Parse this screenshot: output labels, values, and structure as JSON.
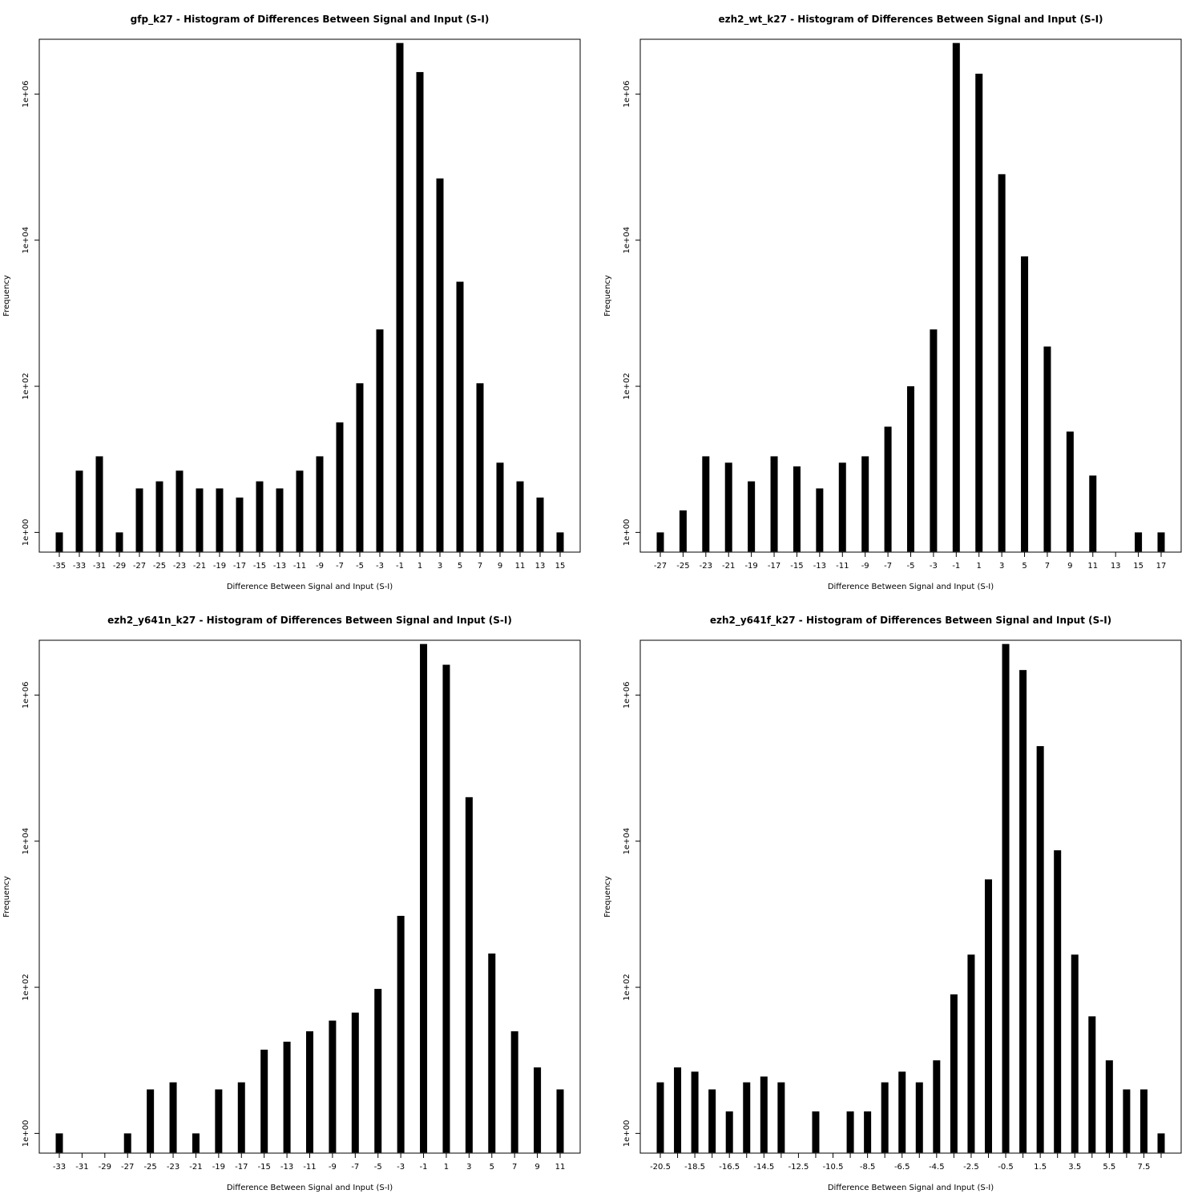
{
  "page": {
    "background": "#ffffff",
    "bar_color": "#000000"
  },
  "chart_data": [
    {
      "type": "bar",
      "title": "gfp_k27 - Histogram of Differences Between Signal and Input (S-I)",
      "xlabel": "Difference Between Signal and Input (S-I)",
      "ylabel": "Frequency",
      "y_scale": "log",
      "y_ticks": [
        "1e+00",
        "1e+02",
        "1e+04",
        "1e+06"
      ],
      "y_tick_values": [
        1,
        100,
        10000,
        1000000
      ],
      "categories": [
        "-35",
        "-33",
        "-31",
        "-29",
        "-27",
        "-25",
        "-23",
        "-21",
        "-19",
        "-17",
        "-15",
        "-13",
        "-11",
        "-9",
        "-7",
        "-5",
        "-3",
        "-1",
        "1",
        "3",
        "5",
        "7",
        "9",
        "11",
        "13",
        "15"
      ],
      "values": [
        1,
        7,
        11,
        1,
        4,
        5,
        7,
        4,
        4,
        3,
        5,
        4,
        7,
        11,
        32,
        110,
        600,
        5000000,
        2000000,
        70000,
        2700,
        110,
        9,
        5,
        3,
        1
      ],
      "grid": false,
      "legend": "none"
    },
    {
      "type": "bar",
      "title": "ezh2_wt_k27 - Histogram of Differences Between Signal and Input (S-I)",
      "xlabel": "Difference Between Signal and Input (S-I)",
      "ylabel": "Frequency",
      "y_scale": "log",
      "y_ticks": [
        "1e+00",
        "1e+02",
        "1e+04",
        "1e+06"
      ],
      "y_tick_values": [
        1,
        100,
        10000,
        1000000
      ],
      "categories": [
        "-27",
        "-25",
        "-23",
        "-21",
        "-19",
        "-17",
        "-15",
        "-13",
        "-11",
        "-9",
        "-7",
        "-5",
        "-3",
        "-1",
        "1",
        "3",
        "5",
        "7",
        "9",
        "11",
        "13",
        "15",
        "17"
      ],
      "values": [
        1,
        2,
        11,
        9,
        5,
        11,
        8,
        4,
        9,
        11,
        28,
        100,
        600,
        5000000,
        1900000,
        80000,
        6000,
        350,
        24,
        6,
        0,
        1,
        1
      ],
      "grid": false,
      "legend": "none"
    },
    {
      "type": "bar",
      "title": "ezh2_y641n_k27 - Histogram of Differences Between Signal and Input (S-I)",
      "xlabel": "Difference Between Signal and Input (S-I)",
      "ylabel": "Frequency",
      "y_scale": "log",
      "y_ticks": [
        "1e+00",
        "1e+02",
        "1e+04",
        "1e+06"
      ],
      "y_tick_values": [
        1,
        100,
        10000,
        1000000
      ],
      "categories": [
        "-33",
        "-31",
        "-29",
        "-27",
        "-25",
        "-23",
        "-21",
        "-19",
        "-17",
        "-15",
        "-13",
        "-11",
        "-9",
        "-7",
        "-5",
        "-3",
        "-1",
        "1",
        "3",
        "5",
        "7",
        "9",
        "11"
      ],
      "values": [
        1,
        0,
        0,
        1,
        4,
        5,
        1,
        4,
        5,
        14,
        18,
        25,
        35,
        45,
        95,
        950,
        5000000,
        2600000,
        40000,
        290,
        25,
        8,
        4
      ],
      "grid": false,
      "legend": "none"
    },
    {
      "type": "bar",
      "title": "ezh2_y641f_k27 - Histogram of Differences Between Signal and Input (S-I)",
      "xlabel": "Difference Between Signal and Input (S-I)",
      "ylabel": "Frequency",
      "y_scale": "log",
      "y_ticks": [
        "1e+00",
        "1e+02",
        "1e+04",
        "1e+06"
      ],
      "y_tick_values": [
        1,
        100,
        10000,
        1000000
      ],
      "categories": [
        "-20.5",
        "-19.5",
        "-18.5",
        "-17.5",
        "-16.5",
        "-15.5",
        "-14.5",
        "-13.5",
        "-12.5",
        "-11.5",
        "-10.5",
        "-9.5",
        "-8.5",
        "-7.5",
        "-6.5",
        "-5.5",
        "-4.5",
        "-3.5",
        "-2.5",
        "-1.5",
        "-0.5",
        "0.5",
        "1.5",
        "2.5",
        "3.5",
        "4.5",
        "5.5",
        "6.5",
        "7.5",
        "8.5"
      ],
      "tick_labels": [
        "-20.5",
        "",
        "-18.5",
        "",
        "-16.5",
        "",
        "-14.5",
        "",
        "-12.5",
        "",
        "-10.5",
        "",
        "-8.5",
        "",
        "-6.5",
        "",
        "-4.5",
        "",
        "-2.5",
        "",
        "-0.5",
        "",
        "1.5",
        "",
        "3.5",
        "",
        "5.5",
        "",
        "7.5",
        ""
      ],
      "values": [
        5,
        8,
        7,
        4,
        2,
        5,
        6,
        5,
        0,
        2,
        0,
        2,
        2,
        5,
        7,
        5,
        10,
        80,
        280,
        3000,
        5000000,
        2200000,
        200000,
        7500,
        280,
        40,
        10,
        4,
        4,
        1
      ],
      "grid": false,
      "legend": "none"
    }
  ]
}
